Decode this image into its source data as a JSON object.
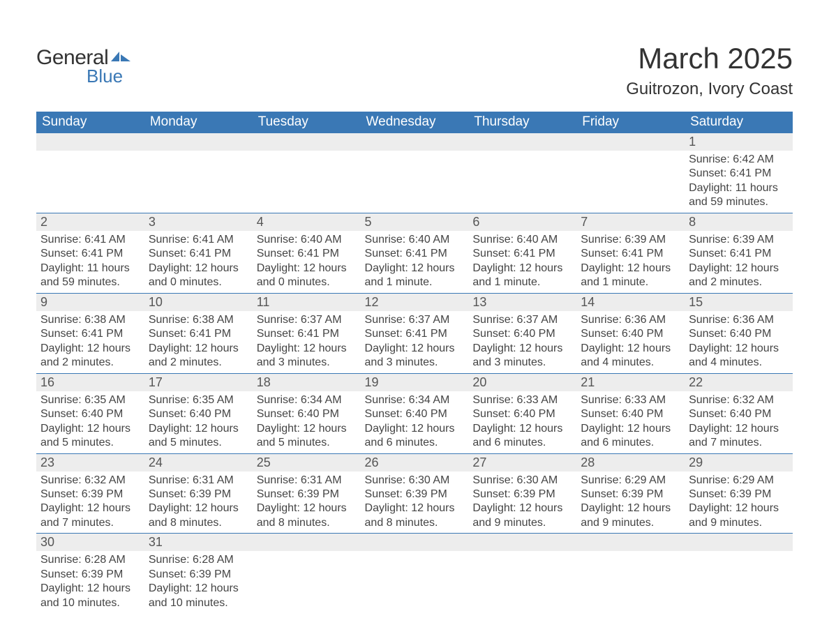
{
  "logo": {
    "word1": "General",
    "word2": "Blue",
    "shape_color": "#3a78b5"
  },
  "title": "March 2025",
  "location": "Guitrozon, Ivory Coast",
  "colors": {
    "header_bg": "#3a78b5",
    "header_text": "#ffffff",
    "daynum_bg": "#ededed",
    "daynum_text": "#555555",
    "body_text": "#444444",
    "rule": "#3a78b5",
    "page_bg": "#ffffff"
  },
  "typography": {
    "title_fontsize": 42,
    "location_fontsize": 24,
    "dayheader_fontsize": 19,
    "daynum_fontsize": 18,
    "cell_fontsize": 16
  },
  "day_headers": [
    "Sunday",
    "Monday",
    "Tuesday",
    "Wednesday",
    "Thursday",
    "Friday",
    "Saturday"
  ],
  "weeks": [
    [
      null,
      null,
      null,
      null,
      null,
      null,
      {
        "n": "1",
        "sunrise": "6:42 AM",
        "sunset": "6:41 PM",
        "daylight": "11 hours and 59 minutes."
      }
    ],
    [
      {
        "n": "2",
        "sunrise": "6:41 AM",
        "sunset": "6:41 PM",
        "daylight": "11 hours and 59 minutes."
      },
      {
        "n": "3",
        "sunrise": "6:41 AM",
        "sunset": "6:41 PM",
        "daylight": "12 hours and 0 minutes."
      },
      {
        "n": "4",
        "sunrise": "6:40 AM",
        "sunset": "6:41 PM",
        "daylight": "12 hours and 0 minutes."
      },
      {
        "n": "5",
        "sunrise": "6:40 AM",
        "sunset": "6:41 PM",
        "daylight": "12 hours and 1 minute."
      },
      {
        "n": "6",
        "sunrise": "6:40 AM",
        "sunset": "6:41 PM",
        "daylight": "12 hours and 1 minute."
      },
      {
        "n": "7",
        "sunrise": "6:39 AM",
        "sunset": "6:41 PM",
        "daylight": "12 hours and 1 minute."
      },
      {
        "n": "8",
        "sunrise": "6:39 AM",
        "sunset": "6:41 PM",
        "daylight": "12 hours and 2 minutes."
      }
    ],
    [
      {
        "n": "9",
        "sunrise": "6:38 AM",
        "sunset": "6:41 PM",
        "daylight": "12 hours and 2 minutes."
      },
      {
        "n": "10",
        "sunrise": "6:38 AM",
        "sunset": "6:41 PM",
        "daylight": "12 hours and 2 minutes."
      },
      {
        "n": "11",
        "sunrise": "6:37 AM",
        "sunset": "6:41 PM",
        "daylight": "12 hours and 3 minutes."
      },
      {
        "n": "12",
        "sunrise": "6:37 AM",
        "sunset": "6:41 PM",
        "daylight": "12 hours and 3 minutes."
      },
      {
        "n": "13",
        "sunrise": "6:37 AM",
        "sunset": "6:40 PM",
        "daylight": "12 hours and 3 minutes."
      },
      {
        "n": "14",
        "sunrise": "6:36 AM",
        "sunset": "6:40 PM",
        "daylight": "12 hours and 4 minutes."
      },
      {
        "n": "15",
        "sunrise": "6:36 AM",
        "sunset": "6:40 PM",
        "daylight": "12 hours and 4 minutes."
      }
    ],
    [
      {
        "n": "16",
        "sunrise": "6:35 AM",
        "sunset": "6:40 PM",
        "daylight": "12 hours and 5 minutes."
      },
      {
        "n": "17",
        "sunrise": "6:35 AM",
        "sunset": "6:40 PM",
        "daylight": "12 hours and 5 minutes."
      },
      {
        "n": "18",
        "sunrise": "6:34 AM",
        "sunset": "6:40 PM",
        "daylight": "12 hours and 5 minutes."
      },
      {
        "n": "19",
        "sunrise": "6:34 AM",
        "sunset": "6:40 PM",
        "daylight": "12 hours and 6 minutes."
      },
      {
        "n": "20",
        "sunrise": "6:33 AM",
        "sunset": "6:40 PM",
        "daylight": "12 hours and 6 minutes."
      },
      {
        "n": "21",
        "sunrise": "6:33 AM",
        "sunset": "6:40 PM",
        "daylight": "12 hours and 6 minutes."
      },
      {
        "n": "22",
        "sunrise": "6:32 AM",
        "sunset": "6:40 PM",
        "daylight": "12 hours and 7 minutes."
      }
    ],
    [
      {
        "n": "23",
        "sunrise": "6:32 AM",
        "sunset": "6:39 PM",
        "daylight": "12 hours and 7 minutes."
      },
      {
        "n": "24",
        "sunrise": "6:31 AM",
        "sunset": "6:39 PM",
        "daylight": "12 hours and 8 minutes."
      },
      {
        "n": "25",
        "sunrise": "6:31 AM",
        "sunset": "6:39 PM",
        "daylight": "12 hours and 8 minutes."
      },
      {
        "n": "26",
        "sunrise": "6:30 AM",
        "sunset": "6:39 PM",
        "daylight": "12 hours and 8 minutes."
      },
      {
        "n": "27",
        "sunrise": "6:30 AM",
        "sunset": "6:39 PM",
        "daylight": "12 hours and 9 minutes."
      },
      {
        "n": "28",
        "sunrise": "6:29 AM",
        "sunset": "6:39 PM",
        "daylight": "12 hours and 9 minutes."
      },
      {
        "n": "29",
        "sunrise": "6:29 AM",
        "sunset": "6:39 PM",
        "daylight": "12 hours and 9 minutes."
      }
    ],
    [
      {
        "n": "30",
        "sunrise": "6:28 AM",
        "sunset": "6:39 PM",
        "daylight": "12 hours and 10 minutes."
      },
      {
        "n": "31",
        "sunrise": "6:28 AM",
        "sunset": "6:39 PM",
        "daylight": "12 hours and 10 minutes."
      },
      null,
      null,
      null,
      null,
      null
    ]
  ],
  "labels": {
    "sunrise": "Sunrise: ",
    "sunset": "Sunset: ",
    "daylight": "Daylight: "
  }
}
